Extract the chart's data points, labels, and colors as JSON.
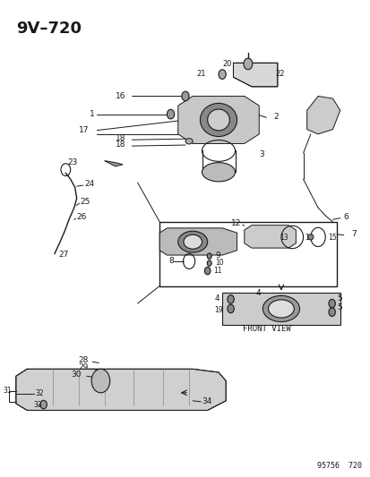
{
  "title": "9V–720",
  "watermark": "95756  720",
  "bg_color": "#ffffff",
  "fg_color": "#1a1a1a",
  "fig_width": 4.14,
  "fig_height": 5.33,
  "dpi": 100
}
